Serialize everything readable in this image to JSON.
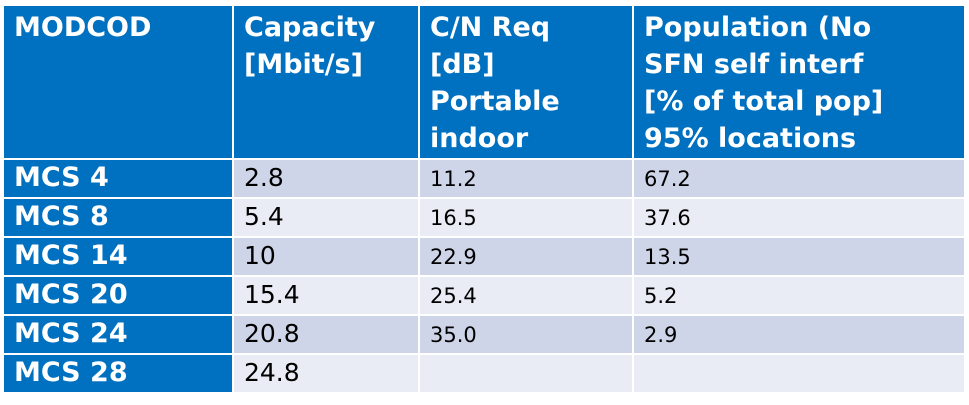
{
  "header": {
    "modcod": "MODCOD",
    "capacity_lines": [
      "Capacity",
      "[Mbit/s]"
    ],
    "cn_lines": [
      "C/N Req",
      "[dB]",
      "Portable",
      "indoor"
    ],
    "population_lines": [
      "Population (No",
      "SFN self interf",
      "[% of total pop]",
      "95% locations"
    ]
  },
  "rows": [
    {
      "modcod": "MCS 4",
      "capacity": "2.8",
      "cn": "11.2",
      "population": "67.2"
    },
    {
      "modcod": "MCS 8",
      "capacity": "5.4",
      "cn": "16.5",
      "population": "37.6"
    },
    {
      "modcod": "MCS 14",
      "capacity": "10",
      "cn": "22.9",
      "population": "13.5"
    },
    {
      "modcod": "MCS 20",
      "capacity": "15.4",
      "cn": "25.4",
      "population": "5.2"
    },
    {
      "modcod": "MCS 24",
      "capacity": "20.8",
      "cn": "35.0",
      "population": "2.9"
    },
    {
      "modcod": "MCS 28",
      "capacity": "24.8",
      "cn": "",
      "population": ""
    }
  ],
  "colors": {
    "header_bg": "#0070c0",
    "row_odd_bg": "#cfd5e8",
    "row_even_bg": "#e9ebf5"
  }
}
